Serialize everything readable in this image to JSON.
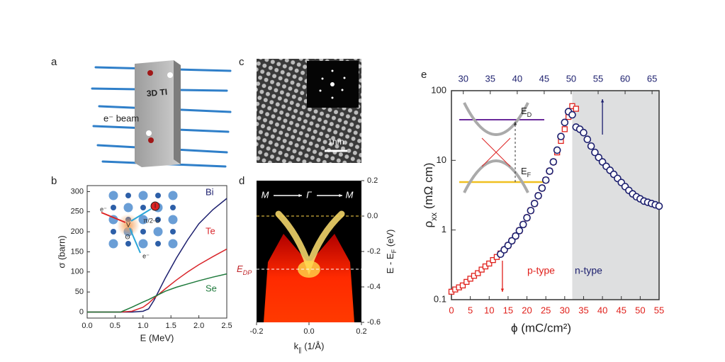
{
  "panel_labels": [
    "a",
    "b",
    "c",
    "d",
    "e"
  ],
  "panel_a": {
    "sample_label": "3D TI",
    "beam_label": "e⁻ beam"
  },
  "panel_c": {
    "scale_bar": "1nm"
  },
  "chart_data": [
    {
      "type": "line",
      "xlabel": "E (MeV)",
      "ylabel": "σ (barn)",
      "x": [
        0,
        0.5,
        0.6,
        0.8,
        1.0,
        1.1,
        1.2,
        1.4,
        1.6,
        1.8,
        2.0,
        2.25,
        2.5
      ],
      "series": [
        {
          "name": "Bi",
          "color": "#1c1f6e",
          "values": [
            0,
            0,
            0,
            0,
            2,
            8,
            30,
            85,
            135,
            180,
            220,
            255,
            283
          ]
        },
        {
          "name": "Te",
          "color": "#d9262b",
          "values": [
            0,
            0,
            0,
            2,
            12,
            22,
            35,
            58,
            80,
            100,
            118,
            138,
            157
          ]
        },
        {
          "name": "Se",
          "color": "#1f7a3c",
          "values": [
            0,
            0,
            0,
            12,
            25,
            31,
            38,
            52,
            62,
            70,
            78,
            87,
            95
          ]
        }
      ],
      "xlim": [
        0,
        2.5
      ],
      "xticks": [
        {
          "value": 0,
          "label": "0.0"
        },
        {
          "value": 0.5,
          "label": "0.5"
        },
        {
          "value": 1,
          "label": "1.0"
        },
        {
          "value": 1.5,
          "label": "1.5"
        },
        {
          "value": 2,
          "label": "2.0"
        },
        {
          "value": 2.5,
          "label": "2.5"
        }
      ],
      "ylim": [
        -15,
        315
      ],
      "yticks": [
        0,
        50,
        100,
        150,
        200,
        250,
        300
      ],
      "inset_labels": [
        "e⁻",
        "V",
        "I",
        "π/2-Θ",
        "Θ",
        "e⁻"
      ]
    },
    {
      "type": "image",
      "xlabel": [
        "k",
        "∥",
        " (1/Å)"
      ],
      "ylabel": [
        "E - E",
        "F",
        " (eV)"
      ],
      "xlim": [
        -0.2,
        0.2
      ],
      "xticks": [
        {
          "value": -0.2,
          "label": "-0.2"
        },
        {
          "value": 0,
          "label": "0.0"
        },
        {
          "value": 0.2,
          "label": "0.2"
        }
      ],
      "ylim": [
        -0.6,
        0.2
      ],
      "yticks": [
        0.2,
        {
          "value": 0,
          "label": "0.0"
        },
        -0.2,
        -0.4,
        -0.6
      ],
      "direction_labels": [
        "M",
        "Γ",
        "M"
      ],
      "fermi_level": 0,
      "dirac_point": {
        "label": [
          "E",
          "DP"
        ],
        "energy": -0.3
      }
    },
    {
      "type": "scatter",
      "log_y": true,
      "xlabel": "ϕ  (mC/cm²)",
      "ylabel": [
        "ρ",
        "xx",
        " (mΩ cm)"
      ],
      "xlim": [
        0,
        55
      ],
      "xticks": [
        0,
        5,
        10,
        15,
        20,
        25,
        30,
        35,
        40,
        45,
        50,
        55
      ],
      "x2lim": [
        27.8,
        66.3
      ],
      "x2ticks": [
        30,
        35,
        40,
        45,
        50,
        55,
        60,
        65
      ],
      "ylim": [
        0.1,
        100
      ],
      "yticks": [
        0.1,
        1,
        10,
        100
      ],
      "shaded_from": 32,
      "region_labels": [
        "p-type",
        "n-type"
      ],
      "inset_labels": [
        [
          "E",
          "D"
        ],
        [
          "E",
          "F"
        ]
      ],
      "series": [
        {
          "color": "#e0201b",
          "marker": "square",
          "x": [
            0,
            1,
            2,
            3,
            4,
            5,
            6,
            7,
            8,
            9,
            10,
            11,
            12,
            13,
            14,
            15,
            16,
            17,
            18,
            19,
            20,
            21,
            22,
            23,
            24,
            25,
            26,
            27,
            28,
            29,
            30,
            31,
            32,
            33
          ],
          "values": [
            0.13,
            0.14,
            0.15,
            0.16,
            0.18,
            0.2,
            0.22,
            0.24,
            0.27,
            0.3,
            0.33,
            0.37,
            0.41,
            0.46,
            0.52,
            0.6,
            0.7,
            0.82,
            0.98,
            1.2,
            1.5,
            1.9,
            2.4,
            3.1,
            4,
            5.2,
            7,
            9.5,
            13,
            19,
            28,
            42,
            60,
            55
          ]
        },
        {
          "color": "#1c1f6e",
          "marker": "circle",
          "x": [
            13,
            14,
            15,
            16,
            17,
            18,
            19,
            20,
            21,
            22,
            23,
            24,
            25,
            26,
            27,
            28,
            29,
            30,
            31,
            32,
            33,
            34,
            35,
            36,
            37,
            38,
            39,
            40,
            41,
            42,
            43,
            44,
            45,
            46,
            47,
            48,
            49,
            50,
            51,
            52,
            53,
            54,
            55
          ],
          "values": [
            0.45,
            0.52,
            0.6,
            0.7,
            0.82,
            0.98,
            1.2,
            1.5,
            1.9,
            2.4,
            3.1,
            4,
            5.2,
            7,
            9.5,
            14,
            22,
            35,
            50,
            45,
            30,
            28,
            25,
            20,
            16,
            13,
            11,
            9.5,
            8.2,
            7.2,
            6.3,
            5.5,
            4.8,
            4.2,
            3.7,
            3.3,
            3.0,
            2.8,
            2.6,
            2.5,
            2.4,
            2.3,
            2.2
          ]
        }
      ]
    }
  ]
}
